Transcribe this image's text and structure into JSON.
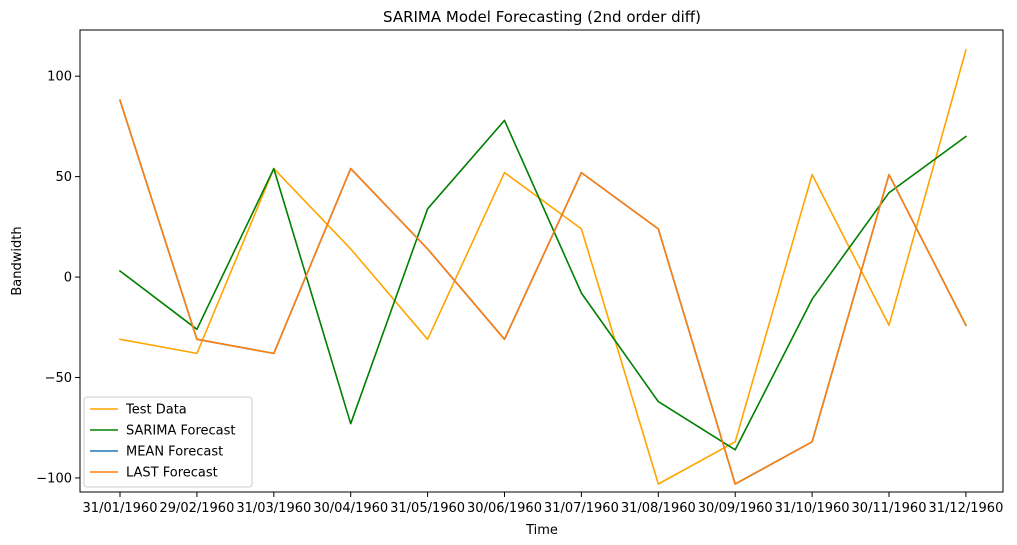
{
  "chart_data": {
    "type": "line",
    "title": "SARIMA Model Forecasting (2nd order diff)",
    "xlabel": "Time",
    "ylabel": "Bandwidth",
    "categories": [
      "31/01/1960",
      "29/02/1960",
      "31/03/1960",
      "30/04/1960",
      "31/05/1960",
      "30/06/1960",
      "31/07/1960",
      "31/08/1960",
      "30/09/1960",
      "31/10/1960",
      "30/11/1960",
      "31/12/1960"
    ],
    "ylim": [
      -107,
      123
    ],
    "yticks": [
      -100,
      -50,
      0,
      50,
      100
    ],
    "ytick_labels": [
      "−100",
      "−50",
      "0",
      "50",
      "100"
    ],
    "grid": false,
    "legend_position": "lower-left",
    "series": [
      {
        "name": "Test Data",
        "color": "#ffa500",
        "values": [
          -31,
          -38,
          54,
          14,
          -31,
          52,
          24,
          -103,
          -82,
          51,
          -24,
          113
        ]
      },
      {
        "name": "SARIMA Forecast",
        "color": "#008000",
        "values": [
          3,
          -26,
          54,
          -73,
          34,
          78,
          -8,
          -62,
          -86,
          -11,
          42,
          70
        ]
      },
      {
        "name": "MEAN Forecast",
        "color": "#1f77b4",
        "values": [
          88,
          -31,
          -38,
          54,
          14,
          -31,
          52,
          24,
          -103,
          -82,
          51,
          -24
        ]
      },
      {
        "name": "LAST Forecast",
        "color": "#ff7f0e",
        "values": [
          88,
          -31,
          -38,
          54,
          14,
          -31,
          52,
          24,
          -103,
          -82,
          51,
          -24
        ]
      }
    ]
  }
}
